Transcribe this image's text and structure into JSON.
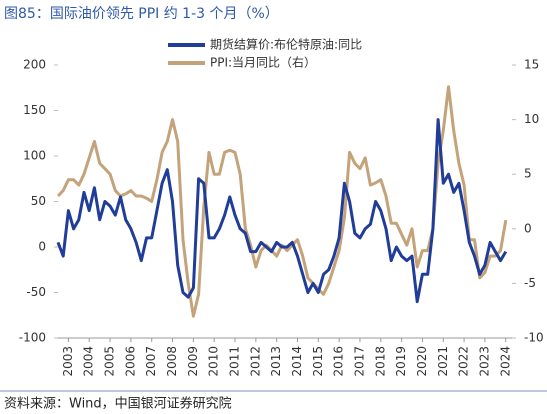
{
  "chart_data": {
    "type": "line",
    "title": "图85：国际油价领先 PPI 约 1-3 个月（%）",
    "source": "资料来源：Wind，中国银河证券研究院",
    "x": [
      2002.5,
      2002.75,
      2003,
      2003.25,
      2003.5,
      2003.75,
      2004,
      2004.25,
      2004.5,
      2004.75,
      2005,
      2005.25,
      2005.5,
      2005.75,
      2006,
      2006.25,
      2006.5,
      2006.75,
      2007,
      2007.25,
      2007.5,
      2007.75,
      2008,
      2008.25,
      2008.5,
      2008.75,
      2009,
      2009.25,
      2009.5,
      2009.75,
      2010,
      2010.25,
      2010.5,
      2010.75,
      2011,
      2011.25,
      2011.5,
      2011.75,
      2012,
      2012.25,
      2012.5,
      2012.75,
      2013,
      2013.25,
      2013.5,
      2013.75,
      2014,
      2014.25,
      2014.5,
      2014.75,
      2015,
      2015.25,
      2015.5,
      2015.75,
      2016,
      2016.25,
      2016.5,
      2016.75,
      2017,
      2017.25,
      2017.5,
      2017.75,
      2018,
      2018.25,
      2018.5,
      2018.75,
      2019,
      2019.25,
      2019.5,
      2019.75,
      2020,
      2020.25,
      2020.5,
      2020.75,
      2021,
      2021.25,
      2021.5,
      2021.75,
      2022,
      2022.25,
      2022.5,
      2022.75,
      2023,
      2023.25,
      2023.5,
      2023.75,
      2024
    ],
    "series": [
      {
        "name": "期货结算价:布伦特原油:同比",
        "color": "#1f3d99",
        "axis": "y",
        "values": [
          5,
          -10,
          40,
          20,
          30,
          60,
          40,
          65,
          30,
          50,
          45,
          35,
          55,
          30,
          20,
          5,
          -15,
          10,
          10,
          40,
          70,
          85,
          50,
          -20,
          -50,
          -55,
          -45,
          75,
          70,
          10,
          10,
          20,
          35,
          55,
          35,
          20,
          15,
          -5,
          -5,
          5,
          0,
          -5,
          5,
          0,
          0,
          5,
          -10,
          -30,
          -50,
          -40,
          -50,
          -30,
          -25,
          -10,
          10,
          70,
          50,
          15,
          10,
          20,
          25,
          50,
          40,
          20,
          -15,
          0,
          -10,
          -15,
          -10,
          -60,
          -30,
          -30,
          20,
          140,
          70,
          80,
          60,
          70,
          40,
          5,
          -10,
          -30,
          -20,
          5,
          -5,
          -15,
          -5
        ]
      },
      {
        "name": "PPI:当月同比（右）",
        "color": "#c4a27a",
        "axis": "y2",
        "values": [
          3,
          3.5,
          4.5,
          4.5,
          4,
          5,
          6.5,
          8,
          6,
          5.5,
          5,
          3.5,
          3,
          3.2,
          3.5,
          3,
          3,
          2.8,
          2.5,
          4.5,
          7,
          8,
          10,
          8,
          -1,
          -5,
          -8,
          -6,
          2,
          7,
          5,
          5,
          7,
          7.2,
          7,
          5,
          0,
          -1.5,
          -3.5,
          -2,
          -1.5,
          -2,
          -2.5,
          -1.5,
          -2,
          -1.5,
          -1,
          -2.5,
          -4.5,
          -5,
          -5.5,
          -6,
          -5,
          -3.5,
          -2,
          1,
          7,
          6,
          5.5,
          6.5,
          4,
          4.2,
          4.5,
          3,
          0.5,
          0.5,
          -0.5,
          -1.5,
          0,
          -3.5,
          -2,
          -2,
          0,
          6,
          9,
          13,
          9,
          6,
          4,
          -1,
          -1,
          -4.5,
          -4,
          -2.5,
          -2.5,
          -2,
          0.8
        ]
      }
    ],
    "xlim": [
      2002.5,
      2024.3
    ],
    "xticks": [
      2003,
      2004,
      2005,
      2006,
      2007,
      2008,
      2009,
      2010,
      2011,
      2012,
      2013,
      2014,
      2015,
      2016,
      2017,
      2018,
      2019,
      2020,
      2021,
      2022,
      2023,
      2024
    ],
    "ylim": [
      -100,
      200
    ],
    "yticks": [
      -100,
      -50,
      0,
      50,
      100,
      150,
      200
    ],
    "y2lim": [
      -10,
      15
    ],
    "y2ticks": [
      -10,
      -5,
      0,
      5,
      10,
      15
    ],
    "legend": "top"
  }
}
